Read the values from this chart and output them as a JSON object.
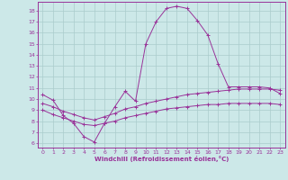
{
  "xlabel": "Windchill (Refroidissement éolien,°C)",
  "bg_color": "#cce8e8",
  "grid_color": "#aacccc",
  "line_color": "#993399",
  "x_ticks": [
    0,
    1,
    2,
    3,
    4,
    5,
    6,
    7,
    8,
    9,
    10,
    11,
    12,
    13,
    14,
    15,
    16,
    17,
    18,
    19,
    20,
    21,
    22,
    23
  ],
  "y_ticks": [
    6,
    7,
    8,
    9,
    10,
    11,
    12,
    13,
    14,
    15,
    16,
    17,
    18
  ],
  "ylim": [
    5.6,
    18.8
  ],
  "xlim": [
    -0.5,
    23.5
  ],
  "curve1_x": [
    0,
    1,
    2,
    3,
    4,
    5,
    6,
    7,
    8,
    9,
    10,
    11,
    12,
    13,
    14,
    15,
    16,
    17,
    18,
    19,
    20,
    21,
    22,
    23
  ],
  "curve1_y": [
    10.4,
    9.9,
    8.5,
    7.8,
    6.6,
    6.1,
    7.8,
    9.3,
    10.7,
    9.8,
    15.0,
    17.0,
    18.2,
    18.4,
    18.2,
    17.1,
    15.8,
    13.2,
    11.1,
    11.1,
    11.1,
    11.1,
    11.0,
    10.5
  ],
  "curve2_x": [
    0,
    1,
    2,
    3,
    4,
    5,
    6,
    7,
    8,
    9,
    10,
    11,
    12,
    13,
    14,
    15,
    16,
    17,
    18,
    19,
    20,
    21,
    22,
    23
  ],
  "curve2_y": [
    9.6,
    9.3,
    8.9,
    8.6,
    8.3,
    8.1,
    8.4,
    8.7,
    9.1,
    9.3,
    9.6,
    9.8,
    10.0,
    10.2,
    10.4,
    10.5,
    10.6,
    10.7,
    10.8,
    10.9,
    10.9,
    10.9,
    10.9,
    10.8
  ],
  "curve3_x": [
    0,
    1,
    2,
    3,
    4,
    5,
    6,
    7,
    8,
    9,
    10,
    11,
    12,
    13,
    14,
    15,
    16,
    17,
    18,
    19,
    20,
    21,
    22,
    23
  ],
  "curve3_y": [
    9.0,
    8.6,
    8.3,
    8.0,
    7.7,
    7.6,
    7.8,
    8.0,
    8.3,
    8.5,
    8.7,
    8.9,
    9.1,
    9.2,
    9.3,
    9.4,
    9.5,
    9.5,
    9.6,
    9.6,
    9.6,
    9.6,
    9.6,
    9.5
  ]
}
